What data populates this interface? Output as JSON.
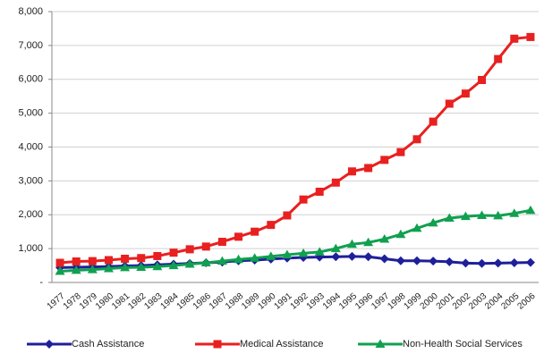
{
  "chart_data": {
    "type": "line",
    "categories": [
      "1977",
      "1978",
      "1979",
      "1980",
      "1981",
      "1982",
      "1983",
      "1984",
      "1985",
      "1986",
      "1987",
      "1988",
      "1989",
      "1990",
      "1991",
      "1992",
      "1993",
      "1994",
      "1995",
      "1996",
      "1997",
      "1998",
      "1999",
      "2000",
      "2001",
      "2002",
      "2003",
      "2004",
      "2005",
      "2006"
    ],
    "series": [
      {
        "name": "Cash Assistance",
        "color": "#1f1f9a",
        "marker": "diamond",
        "values": [
          440,
          450,
          460,
          470,
          490,
          500,
          520,
          540,
          560,
          580,
          600,
          640,
          660,
          690,
          720,
          740,
          750,
          760,
          770,
          760,
          700,
          640,
          640,
          630,
          610,
          570,
          560,
          570,
          580,
          590
        ]
      },
      {
        "name": "Medical Assistance",
        "color": "#e82020",
        "marker": "square",
        "values": [
          580,
          620,
          630,
          660,
          700,
          720,
          780,
          880,
          980,
          1060,
          1200,
          1350,
          1500,
          1700,
          1980,
          2450,
          2680,
          2950,
          3280,
          3380,
          3620,
          3850,
          4230,
          4750,
          5280,
          5580,
          5980,
          6600,
          7200,
          7250
        ]
      },
      {
        "name": "Non-Health Social Services",
        "color": "#10a050",
        "marker": "triangle",
        "values": [
          330,
          360,
          380,
          410,
          440,
          450,
          470,
          500,
          540,
          580,
          630,
          680,
          720,
          770,
          820,
          860,
          900,
          1000,
          1130,
          1180,
          1280,
          1420,
          1600,
          1760,
          1900,
          1950,
          1980,
          1970,
          2040,
          2130
        ]
      }
    ],
    "ylim": [
      0,
      8000
    ],
    "yticks": [
      {
        "value": 0,
        "label": "-"
      },
      {
        "value": 1000,
        "label": "1,000"
      },
      {
        "value": 2000,
        "label": "2,000"
      },
      {
        "value": 3000,
        "label": "3,000"
      },
      {
        "value": 4000,
        "label": "4,000"
      },
      {
        "value": 5000,
        "label": "5,000"
      },
      {
        "value": 6000,
        "label": "6,000"
      },
      {
        "value": 7000,
        "label": "7,000"
      },
      {
        "value": 8000,
        "label": "8,000"
      }
    ],
    "grid": true,
    "legend": "bottom"
  }
}
